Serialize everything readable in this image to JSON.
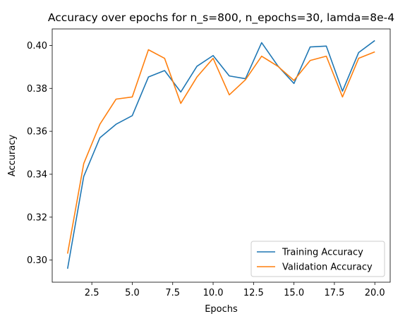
{
  "chart_data": {
    "type": "line",
    "title": "Accuracy over epochs for n_s=800, n_epochs=30, lamda=8e-4",
    "xlabel": "Epochs",
    "ylabel": "Accuracy",
    "x": [
      1,
      2,
      3,
      4,
      5,
      6,
      7,
      8,
      9,
      10,
      11,
      12,
      13,
      14,
      15,
      16,
      17,
      18,
      19,
      20
    ],
    "xlim": [
      0.05,
      20.95
    ],
    "ylim": [
      0.2897,
      0.4077
    ],
    "xticks": [
      2.5,
      5.0,
      7.5,
      10.0,
      12.5,
      15.0,
      17.5,
      20.0
    ],
    "xtick_labels": [
      "2.5",
      "5.0",
      "7.5",
      "10.0",
      "12.5",
      "15.0",
      "17.5",
      "20.0"
    ],
    "yticks": [
      0.3,
      0.32,
      0.34,
      0.36,
      0.38,
      0.4
    ],
    "ytick_labels": [
      "0.30",
      "0.32",
      "0.34",
      "0.36",
      "0.38",
      "0.40"
    ],
    "grid": false,
    "legend_position": "lower-right",
    "series": [
      {
        "name": "Training Accuracy",
        "color": "#1f77b4",
        "values": [
          0.296,
          0.339,
          0.357,
          0.3633,
          0.3673,
          0.3853,
          0.3883,
          0.3783,
          0.3903,
          0.3953,
          0.3858,
          0.3845,
          0.4013,
          0.3905,
          0.3823,
          0.3993,
          0.3997,
          0.3787,
          0.3967,
          0.4023
        ]
      },
      {
        "name": "Validation Accuracy",
        "color": "#ff7f0e",
        "values": [
          0.303,
          0.345,
          0.3633,
          0.375,
          0.376,
          0.398,
          0.394,
          0.373,
          0.3853,
          0.394,
          0.377,
          0.384,
          0.395,
          0.3903,
          0.3837,
          0.393,
          0.395,
          0.376,
          0.394,
          0.397
        ]
      }
    ]
  }
}
